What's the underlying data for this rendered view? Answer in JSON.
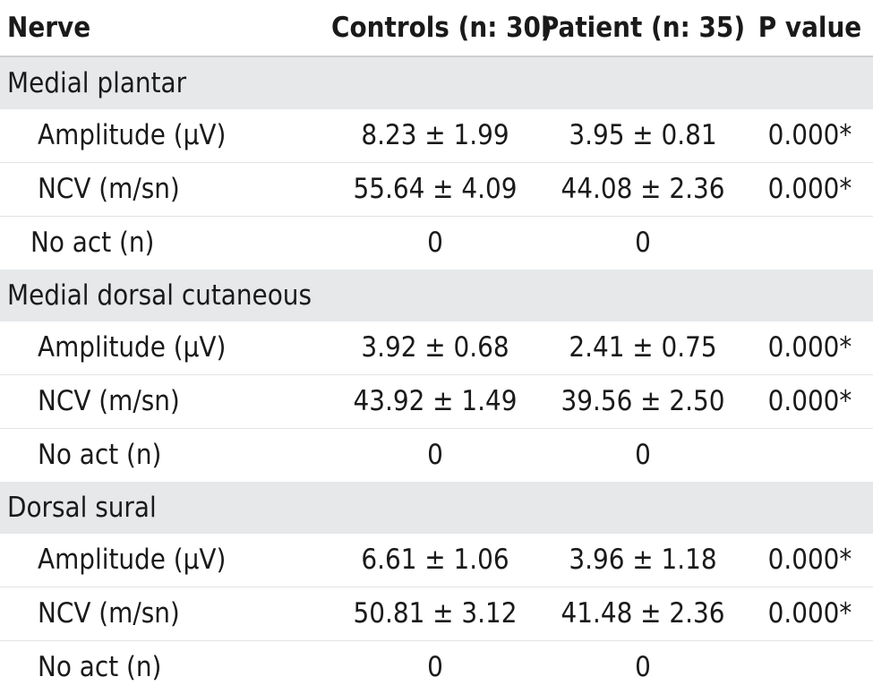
{
  "header": {
    "nerve": "Nerve",
    "controls": "Controls (n: 30)",
    "patient": "Patient (n: 35)",
    "pvalue": "P value"
  },
  "groups": [
    {
      "name": "Medial plantar",
      "rows": [
        {
          "label": "Amplitude (μV)",
          "controls": "8.23 ± 1.99",
          "patient": "3.95 ± 0.81",
          "p": "0.000*"
        },
        {
          "label": "NCV (m/sn)",
          "controls": "55.64 ± 4.09",
          "patient": "44.08 ± 2.36",
          "p": "0.000*"
        },
        {
          "label": "No act (n)",
          "controls": "0",
          "patient": "0",
          "p": ""
        }
      ]
    },
    {
      "name": "Medial dorsal cutaneous",
      "rows": [
        {
          "label": "Amplitude (μV)",
          "controls": "3.92 ± 0.68",
          "patient": "2.41 ± 0.75",
          "p": "0.000*"
        },
        {
          "label": "NCV (m/sn)",
          "controls": "43.92 ± 1.49",
          "patient": "39.56 ± 2.50",
          "p": "0.000*"
        },
        {
          "label": "No act (n)",
          "controls": "0",
          "patient": "0",
          "p": ""
        }
      ]
    },
    {
      "name": "Dorsal sural",
      "rows": [
        {
          "label": "Amplitude (μV)",
          "controls": "6.61 ± 1.06",
          "patient": "3.96 ± 1.18",
          "p": "0.000*"
        },
        {
          "label": "NCV (m/sn)",
          "controls": "50.81 ± 3.12",
          "patient": "41.48 ± 2.36",
          "p": "0.000*"
        },
        {
          "label": "No act (n)",
          "controls": "0",
          "patient": "0",
          "p": ""
        }
      ]
    }
  ]
}
